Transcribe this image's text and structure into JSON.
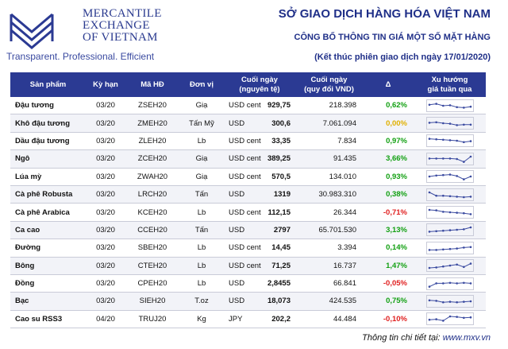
{
  "brand": {
    "name_lines": [
      "MERCANTILE",
      "EXCHANGE",
      "OF VIETNAM"
    ],
    "tagline": "Transparent. Professional. Efficient"
  },
  "header": {
    "title": "SỞ GIAO DỊCH HÀNG HÓA VIỆT NAM",
    "subtitle": "CÔNG BỐ THÔNG TIN GIÁ MỘT SỐ MẶT HÀNG",
    "session": "(Kết thúc phiên giao dịch ngày 17/01/2020)"
  },
  "table": {
    "columns": [
      "Sản phẩm",
      "Kỳ hạn",
      "Mã HĐ",
      "Đơn vị",
      "Cuối ngày",
      "Cuối ngày",
      "Δ",
      "Xu hướng"
    ],
    "columns_sub": [
      "",
      "",
      "",
      "",
      "",
      "(nguyên tệ)",
      "(quy đổi VND)",
      "",
      "giá tuần qua"
    ],
    "rows": [
      {
        "product": "Đậu tương",
        "term": "03/20",
        "code": "ZSEH20",
        "unit": "Giạ",
        "currency": "USD cent",
        "price": "929,75",
        "vnd": "218.398",
        "change": "0,62%",
        "change_color": "#12a012",
        "trend": [
          0.6,
          0.7,
          0.5,
          0.55,
          0.35,
          0.3,
          0.4
        ]
      },
      {
        "product": "Khô đậu tương",
        "term": "03/20",
        "code": "ZMEH20",
        "unit": "Tấn Mỹ",
        "currency": "USD",
        "price": "300,6",
        "vnd": "7.061.094",
        "change": "0,00%",
        "change_color": "#e0b000",
        "trend": [
          0.55,
          0.6,
          0.5,
          0.45,
          0.3,
          0.35,
          0.35
        ]
      },
      {
        "product": "Dầu đậu tương",
        "term": "03/20",
        "code": "ZLEH20",
        "unit": "Lb",
        "currency": "USD cent",
        "price": "33,35",
        "vnd": "7.834",
        "change": "0,97%",
        "change_color": "#12a012",
        "trend": [
          0.7,
          0.65,
          0.6,
          0.55,
          0.5,
          0.35,
          0.45
        ]
      },
      {
        "product": "Ngô",
        "term": "03/20",
        "code": "ZCEH20",
        "unit": "Giạ",
        "currency": "USD cent",
        "price": "389,25",
        "vnd": "91.435",
        "change": "3,66%",
        "change_color": "#12a012",
        "trend": [
          0.55,
          0.55,
          0.55,
          0.55,
          0.5,
          0.2,
          0.75
        ]
      },
      {
        "product": "Lúa mỳ",
        "term": "03/20",
        "code": "ZWAH20",
        "unit": "Giạ",
        "currency": "USD cent",
        "price": "570,5",
        "vnd": "134.010",
        "change": "0,93%",
        "change_color": "#12a012",
        "trend": [
          0.5,
          0.6,
          0.65,
          0.7,
          0.55,
          0.2,
          0.5
        ]
      },
      {
        "product": "Cà phê Robusta",
        "term": "03/20",
        "code": "LRCH20",
        "unit": "Tấn",
        "currency": "USD",
        "price": "1319",
        "vnd": "30.983.310",
        "change": "0,38%",
        "change_color": "#12a012",
        "trend": [
          0.75,
          0.4,
          0.4,
          0.35,
          0.3,
          0.25,
          0.3
        ]
      },
      {
        "product": "Cà phê Arabica",
        "term": "03/20",
        "code": "KCEH20",
        "unit": "Lb",
        "currency": "USD cent",
        "price": "112,15",
        "vnd": "26.344",
        "change": "-0,71%",
        "change_color": "#e02020",
        "trend": [
          0.75,
          0.7,
          0.55,
          0.5,
          0.45,
          0.4,
          0.3
        ]
      },
      {
        "product": "Ca cao",
        "term": "03/20",
        "code": "CCEH20",
        "unit": "Tấn",
        "currency": "USD",
        "price": "2797",
        "vnd": "65.701.530",
        "change": "3,13%",
        "change_color": "#12a012",
        "trend": [
          0.3,
          0.35,
          0.4,
          0.45,
          0.5,
          0.55,
          0.75
        ]
      },
      {
        "product": "Đường",
        "term": "03/20",
        "code": "SBEH20",
        "unit": "Lb",
        "currency": "USD cent",
        "price": "14,45",
        "vnd": "3.394",
        "change": "0,14%",
        "change_color": "#12a012",
        "trend": [
          0.3,
          0.3,
          0.35,
          0.4,
          0.45,
          0.55,
          0.6
        ]
      },
      {
        "product": "Bông",
        "term": "03/20",
        "code": "CTEH20",
        "unit": "Lb",
        "currency": "USD cent",
        "price": "71,25",
        "vnd": "16.737",
        "change": "1,47%",
        "change_color": "#12a012",
        "trend": [
          0.25,
          0.3,
          0.4,
          0.5,
          0.6,
          0.35,
          0.7
        ]
      },
      {
        "product": "Đồng",
        "term": "03/20",
        "code": "CPEH20",
        "unit": "Lb",
        "currency": "USD",
        "price": "2,8455",
        "vnd": "66.841",
        "change": "-0,05%",
        "change_color": "#e02020",
        "trend": [
          0.2,
          0.55,
          0.55,
          0.6,
          0.55,
          0.6,
          0.55
        ]
      },
      {
        "product": "Bạc",
        "term": "03/20",
        "code": "SIEH20",
        "unit": "T.oz",
        "currency": "USD",
        "price": "18,073",
        "vnd": "424.535",
        "change": "0,75%",
        "change_color": "#12a012",
        "trend": [
          0.6,
          0.55,
          0.4,
          0.45,
          0.4,
          0.45,
          0.5
        ]
      },
      {
        "product": "Cao su RSS3",
        "term": "04/20",
        "code": "TRUJ20",
        "unit": "Kg",
        "currency": "JPY",
        "price": "202,2",
        "vnd": "44.484",
        "change": "-0,10%",
        "change_color": "#e02020",
        "trend": [
          0.4,
          0.45,
          0.3,
          0.75,
          0.7,
          0.6,
          0.65
        ]
      }
    ]
  },
  "footer": {
    "label": "Thông tin chi tiết tại:",
    "link": "www.mxv.vn"
  },
  "colors": {
    "brand_blue": "#2b3a93",
    "up": "#12a012",
    "flat": "#e0b000",
    "down": "#e02020"
  }
}
